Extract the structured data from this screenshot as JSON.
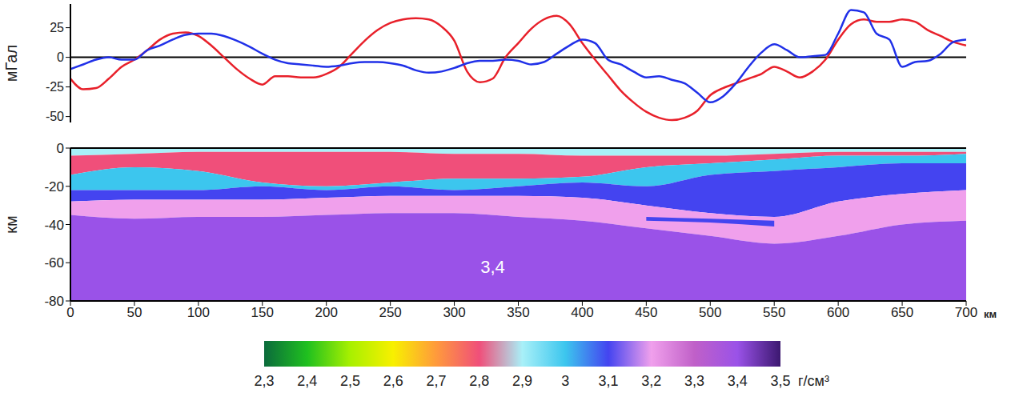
{
  "chart_data": [
    {
      "type": "line",
      "y_label": "мГал",
      "x": [
        0,
        10,
        20,
        30,
        40,
        50,
        60,
        70,
        80,
        90,
        100,
        110,
        120,
        130,
        140,
        150,
        160,
        170,
        180,
        190,
        200,
        210,
        220,
        230,
        240,
        250,
        260,
        270,
        280,
        290,
        300,
        310,
        320,
        330,
        340,
        350,
        360,
        370,
        380,
        390,
        400,
        410,
        420,
        430,
        440,
        450,
        460,
        470,
        480,
        490,
        500,
        510,
        520,
        530,
        540,
        550,
        560,
        570,
        580,
        590,
        600,
        610,
        620,
        630,
        640,
        650,
        660,
        670,
        680,
        690,
        700
      ],
      "xlim": [
        0,
        700
      ],
      "ylim": [
        -55,
        45
      ],
      "yticks": [
        -50,
        -25,
        0,
        25
      ],
      "tick_labels": "y",
      "series": [
        {
          "color": "#e8202a",
          "values": [
            -18,
            -27,
            -26,
            -18,
            -8,
            -2,
            6,
            15,
            20,
            21,
            18,
            10,
            0,
            -10,
            -18,
            -23,
            -16,
            -16,
            -17,
            -17,
            -14,
            -8,
            3,
            14,
            23,
            29,
            32,
            33,
            32,
            26,
            14,
            -12,
            -21,
            -18,
            0,
            12,
            24,
            32,
            35,
            28,
            12,
            -2,
            -15,
            -28,
            -38,
            -46,
            -51,
            -53,
            -51,
            -45,
            -32,
            -26,
            -22,
            -18,
            -14,
            -8,
            -12,
            -17,
            -12,
            -2,
            15,
            28,
            32,
            30,
            30,
            32,
            30,
            23,
            18,
            13,
            10
          ]
        },
        {
          "color": "#2030e8",
          "values": [
            -10,
            -6,
            -2,
            0,
            -2,
            -2,
            6,
            10,
            15,
            19,
            20,
            20,
            18,
            14,
            9,
            3,
            -2,
            -5,
            -6,
            -7,
            -8,
            -7,
            -5,
            -4,
            -4,
            -5,
            -7,
            -11,
            -13,
            -12,
            -9,
            -5,
            -3,
            -3,
            -2,
            -3,
            -6,
            -4,
            3,
            10,
            15,
            12,
            -2,
            -6,
            -12,
            -17,
            -16,
            -19,
            -22,
            -30,
            -38,
            -33,
            -22,
            -8,
            4,
            11,
            6,
            0,
            1,
            2,
            20,
            40,
            38,
            20,
            15,
            -8,
            -4,
            -3,
            3,
            13,
            15
          ]
        }
      ]
    },
    {
      "type": "area",
      "x_label": "км",
      "y_label": "км",
      "x": [
        0,
        50,
        100,
        150,
        200,
        250,
        300,
        350,
        400,
        450,
        500,
        550,
        600,
        650,
        700
      ],
      "xlim": [
        0,
        700
      ],
      "xticks": [
        0,
        50,
        100,
        150,
        200,
        250,
        300,
        350,
        400,
        450,
        500,
        550,
        600,
        650,
        700
      ],
      "ylim": [
        -80,
        0
      ],
      "yticks": [
        -80,
        -60,
        -40,
        -20,
        0
      ],
      "layers": [
        {
          "density": 2.92,
          "top": [
            0,
            0,
            0,
            0,
            0,
            0,
            0,
            0,
            0,
            0,
            0,
            0,
            0,
            0,
            0
          ],
          "bottom": [
            -4,
            -3,
            -2,
            -2,
            -2,
            -2,
            -3,
            -3,
            -4,
            -4,
            -4,
            -3,
            -2,
            -2,
            -2
          ]
        },
        {
          "density": 2.85,
          "top": [
            -4,
            -3,
            -2,
            -2,
            -2,
            -2,
            -3,
            -3,
            -4,
            -4,
            -4,
            -3,
            -2,
            -2,
            -2
          ],
          "bottom": [
            -14,
            -10,
            -12,
            -18,
            -20,
            -18,
            -16,
            -16,
            -15,
            -10,
            -8,
            -6,
            -4,
            -4,
            -3
          ]
        },
        {
          "density": 3.0,
          "top": [
            -14,
            -10,
            -12,
            -18,
            -20,
            -18,
            -16,
            -16,
            -15,
            -10,
            -8,
            -6,
            -4,
            -4,
            -3
          ],
          "bottom": [
            -22,
            -22,
            -22,
            -20,
            -22,
            -20,
            -22,
            -20,
            -18,
            -20,
            -14,
            -12,
            -10,
            -8,
            -8
          ]
        },
        {
          "density": 3.1,
          "top": [
            -22,
            -22,
            -22,
            -20,
            -22,
            -20,
            -22,
            -20,
            -18,
            -20,
            -14,
            -12,
            -10,
            -8,
            -8
          ],
          "bottom": [
            -28,
            -27,
            -27,
            -27,
            -26,
            -25,
            -25,
            -25,
            -26,
            -30,
            -34,
            -36,
            -28,
            -24,
            -22
          ]
        },
        {
          "density": 3.2,
          "top": [
            -28,
            -27,
            -27,
            -27,
            -26,
            -25,
            -25,
            -25,
            -26,
            -30,
            -34,
            -36,
            -28,
            -24,
            -22
          ],
          "bottom": [
            -35,
            -37,
            -36,
            -36,
            -35,
            -34,
            -34,
            -36,
            -38,
            -42,
            -46,
            -50,
            -46,
            -40,
            -38
          ]
        },
        {
          "density": 3.4,
          "top": [
            -35,
            -37,
            -36,
            -36,
            -35,
            -34,
            -34,
            -36,
            -38,
            -42,
            -46,
            -50,
            -46,
            -40,
            -38
          ],
          "bottom": [
            -80,
            -80,
            -80,
            -80,
            -80,
            -80,
            -80,
            -80,
            -80,
            -80,
            -80,
            -80,
            -80,
            -80,
            -80
          ]
        },
        {
          "density": 3.1,
          "top": [
            null,
            null,
            null,
            null,
            null,
            null,
            null,
            null,
            null,
            -36,
            -37,
            -38,
            null,
            null,
            null
          ],
          "bottom": [
            null,
            null,
            null,
            null,
            null,
            null,
            null,
            null,
            null,
            -38,
            -39,
            -41,
            null,
            null,
            null
          ]
        }
      ],
      "annotations": [
        {
          "text": "3,4",
          "x": 330,
          "y": -62
        }
      ],
      "colorbar": {
        "range": [
          2.3,
          3.5
        ],
        "label": "г/см³",
        "ticks": [
          {
            "value": 2.3,
            "label": "2,3"
          },
          {
            "value": 2.4,
            "label": "2,4"
          },
          {
            "value": 2.5,
            "label": "2,5"
          },
          {
            "value": 2.6,
            "label": "2,6"
          },
          {
            "value": 2.7,
            "label": "2,7"
          },
          {
            "value": 2.8,
            "label": "2,8"
          },
          {
            "value": 2.9,
            "label": "2,9"
          },
          {
            "value": 3,
            "label": "3"
          },
          {
            "value": 3.1,
            "label": "3,1"
          },
          {
            "value": 3.2,
            "label": "3,2"
          },
          {
            "value": 3.3,
            "label": "3,3"
          },
          {
            "value": 3.4,
            "label": "3,4"
          },
          {
            "value": 3.5,
            "label": "3,5"
          }
        ],
        "colors": [
          "#0b6b3c",
          "#1fc01f",
          "#a8f000",
          "#f8f000",
          "#ff9a3c",
          "#f04f7a",
          "#a8f0f8",
          "#3cc6ee",
          "#4444f0",
          "#f0a0ec",
          "#c060c8",
          "#9a52e8",
          "#3c1870"
        ]
      }
    }
  ]
}
